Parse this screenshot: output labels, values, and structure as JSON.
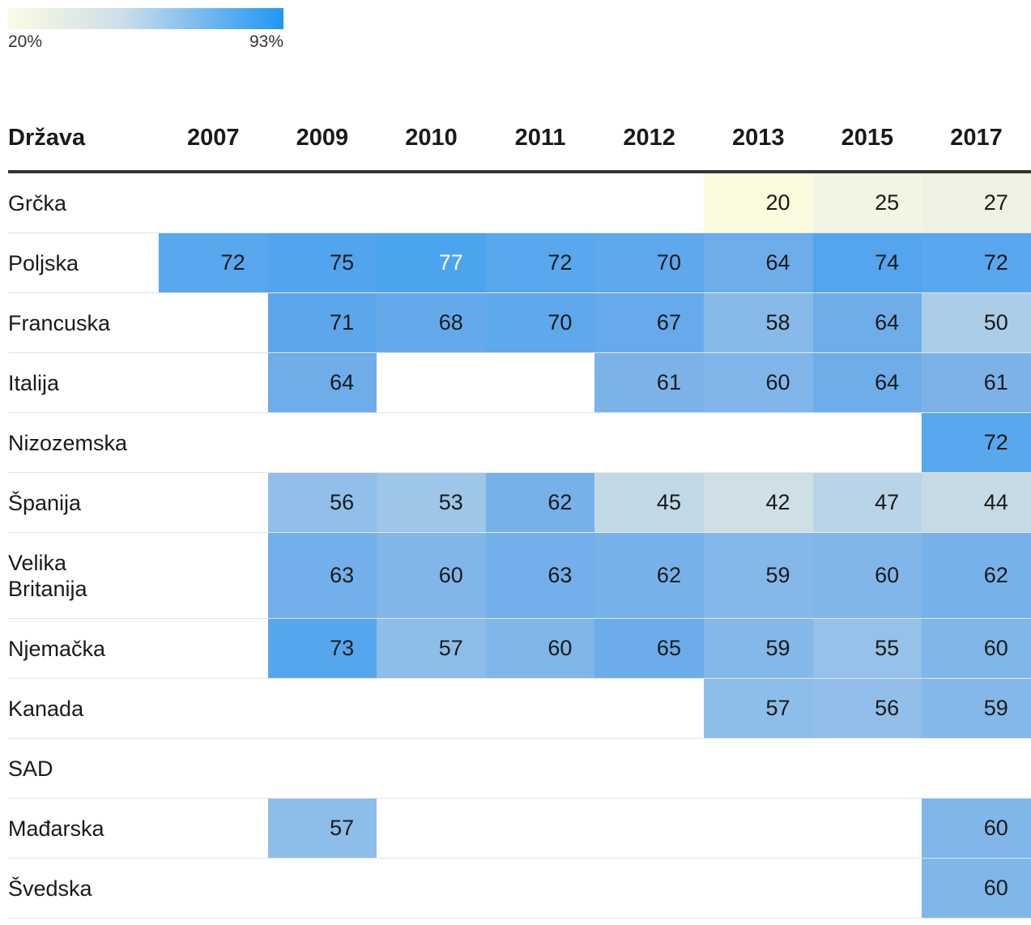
{
  "legend": {
    "min_label": "20%",
    "max_label": "93%",
    "color_low": "#fbfbe0",
    "color_high": "#2196f3"
  },
  "chart_data": {
    "type": "heatmap",
    "title": "",
    "value_range": [
      20,
      93
    ],
    "row_header": "Država",
    "columns": [
      "2007",
      "2009",
      "2010",
      "2011",
      "2012",
      "2013",
      "2015",
      "2017"
    ],
    "rows": [
      {
        "country": "Grčka",
        "values": [
          null,
          null,
          null,
          null,
          null,
          20,
          25,
          27
        ]
      },
      {
        "country": "Poljska",
        "values": [
          72,
          75,
          77,
          72,
          70,
          64,
          74,
          72
        ]
      },
      {
        "country": "Francuska",
        "values": [
          null,
          71,
          68,
          70,
          67,
          58,
          64,
          50
        ]
      },
      {
        "country": "Italija",
        "values": [
          null,
          64,
          null,
          null,
          61,
          60,
          64,
          61
        ]
      },
      {
        "country": "Nizozemska",
        "values": [
          null,
          null,
          null,
          null,
          null,
          null,
          null,
          72
        ]
      },
      {
        "country": "Španija",
        "values": [
          null,
          56,
          53,
          62,
          45,
          42,
          47,
          44
        ]
      },
      {
        "country": "Velika Britanija",
        "values": [
          null,
          63,
          60,
          63,
          62,
          59,
          60,
          62
        ]
      },
      {
        "country": "Njemačka",
        "values": [
          null,
          73,
          57,
          60,
          65,
          59,
          55,
          60
        ]
      },
      {
        "country": "Kanada",
        "values": [
          null,
          null,
          null,
          null,
          null,
          57,
          56,
          59
        ]
      },
      {
        "country": "SAD",
        "values": [
          null,
          null,
          null,
          null,
          null,
          null,
          null,
          null
        ]
      },
      {
        "country": "Mađarska",
        "values": [
          null,
          57,
          null,
          null,
          null,
          null,
          null,
          60
        ]
      },
      {
        "country": "Švedska",
        "values": [
          null,
          null,
          null,
          null,
          null,
          null,
          null,
          60
        ]
      }
    ]
  }
}
